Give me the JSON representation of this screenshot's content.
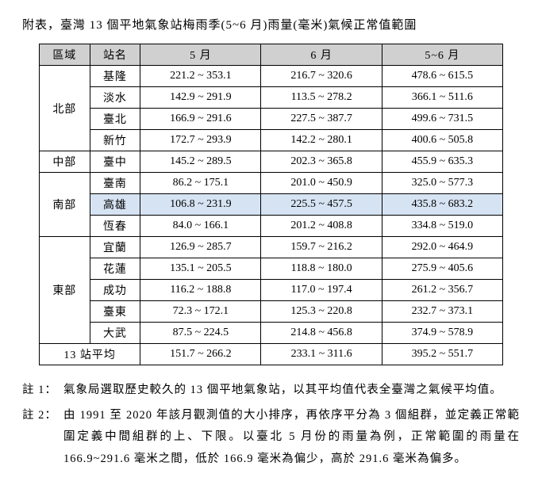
{
  "title": "附表，臺灣 13 個平地氣象站梅雨季(5~6 月)雨量(毫米)氣候正常值範圍",
  "headers": {
    "region": "區域",
    "station": "站名",
    "may": "5 月",
    "jun": "6 月",
    "mayjun": "5~6 月"
  },
  "groups": [
    {
      "region": "北部",
      "stations": [
        {
          "name": "基隆",
          "may": "221.2 ~ 353.1",
          "jun": "216.7 ~ 320.6",
          "mj": "478.6 ~ 615.5"
        },
        {
          "name": "淡水",
          "may": "142.9 ~ 291.9",
          "jun": "113.5 ~ 278.2",
          "mj": "366.1 ~ 511.6"
        },
        {
          "name": "臺北",
          "may": "166.9 ~ 291.6",
          "jun": "227.5 ~ 387.7",
          "mj": "499.6 ~ 731.5"
        },
        {
          "name": "新竹",
          "may": "172.7 ~ 293.9",
          "jun": "142.2 ~ 280.1",
          "mj": "400.6 ~ 505.8"
        }
      ]
    },
    {
      "region": "中部",
      "stations": [
        {
          "name": "臺中",
          "may": "145.2 ~ 289.5",
          "jun": "202.3 ~ 365.8",
          "mj": "455.9 ~ 635.3"
        }
      ]
    },
    {
      "region": "南部",
      "stations": [
        {
          "name": "臺南",
          "may": "86.2 ~ 175.1",
          "jun": "201.0 ~ 450.9",
          "mj": "325.0 ~ 577.3"
        },
        {
          "name": "高雄",
          "may": "106.8 ~ 231.9",
          "jun": "225.5 ~ 457.5",
          "mj": "435.8 ~ 683.2",
          "highlight": true
        },
        {
          "name": "恆春",
          "may": "84.0 ~ 166.1",
          "jun": "201.2 ~ 408.8",
          "mj": "334.8 ~ 519.0"
        }
      ]
    },
    {
      "region": "東部",
      "stations": [
        {
          "name": "宜蘭",
          "may": "126.9 ~ 285.7",
          "jun": "159.7 ~ 216.2",
          "mj": "292.0 ~ 464.9"
        },
        {
          "name": "花蓮",
          "may": "135.1 ~ 205.5",
          "jun": "118.8 ~ 180.0",
          "mj": "275.9 ~ 405.6"
        },
        {
          "name": "成功",
          "may": "116.2 ~ 188.8",
          "jun": "117.0 ~ 197.4",
          "mj": "261.2 ~ 356.7"
        },
        {
          "name": "臺東",
          "may": "72.3 ~ 172.1",
          "jun": "125.3 ~ 220.8",
          "mj": "232.7 ~ 373.1"
        },
        {
          "name": "大武",
          "may": "87.5 ~ 224.5",
          "jun": "214.8 ~ 456.8",
          "mj": "374.9 ~ 578.9"
        }
      ]
    }
  ],
  "average": {
    "label": "13 站平均",
    "may": "151.7 ~ 266.2",
    "jun": "233.1 ~ 311.6",
    "mj": "395.2 ~ 551.7"
  },
  "notes": [
    {
      "label": "註 1：",
      "body": "氣象局選取歷史較久的 13 個平地氣象站，以其平均值代表全臺灣之氣候平均值。"
    },
    {
      "label": "註 2：",
      "body": "由 1991 至 2020 年該月觀測值的大小排序，再依序平分為 3 個組群，並定義正常範圍定義中間組群的上、下限。以臺北 5 月份的雨量為例，正常範圍的雨量在 166.9~291.6 毫米之間，低於 166.9 毫米為偏少，高於 291.6 毫米為偏多。"
    }
  ]
}
